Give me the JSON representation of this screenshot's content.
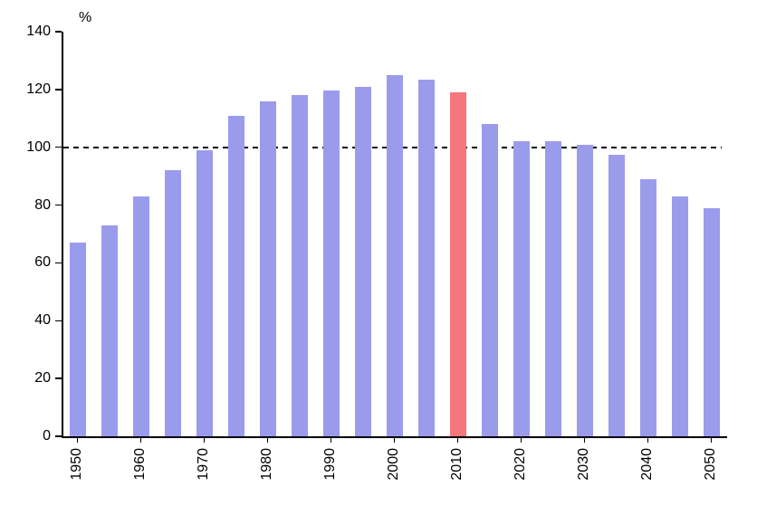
{
  "chart_data": {
    "type": "bar",
    "title": "",
    "xlabel": "",
    "ylabel": "%",
    "categories": [
      "1950",
      "1955",
      "1960",
      "1965",
      "1970",
      "1975",
      "1980",
      "1985",
      "1990",
      "1995",
      "2000",
      "2005",
      "2010",
      "2015",
      "2020",
      "2025",
      "2030",
      "2035",
      "2040",
      "2045",
      "2050"
    ],
    "values": [
      67,
      73,
      83,
      92,
      99,
      111,
      116,
      118,
      119.5,
      121,
      125,
      123.5,
      119,
      108,
      102,
      102,
      101,
      97.5,
      89,
      83,
      79
    ],
    "ylim": [
      0,
      140
    ],
    "yticks": [
      0,
      20,
      40,
      60,
      80,
      100,
      120,
      140
    ],
    "x_tick_labels": [
      "1950",
      "1960",
      "1970",
      "1980",
      "1990",
      "2000",
      "2010",
      "2020",
      "2030",
      "2040",
      "2050"
    ],
    "reference_line_y": 100,
    "bar_color": "#9b9bec",
    "highlight_bar": {
      "category": "2010",
      "color": "#f5767b"
    },
    "axis_color": "#000000",
    "legend": "none",
    "grid": false
  }
}
